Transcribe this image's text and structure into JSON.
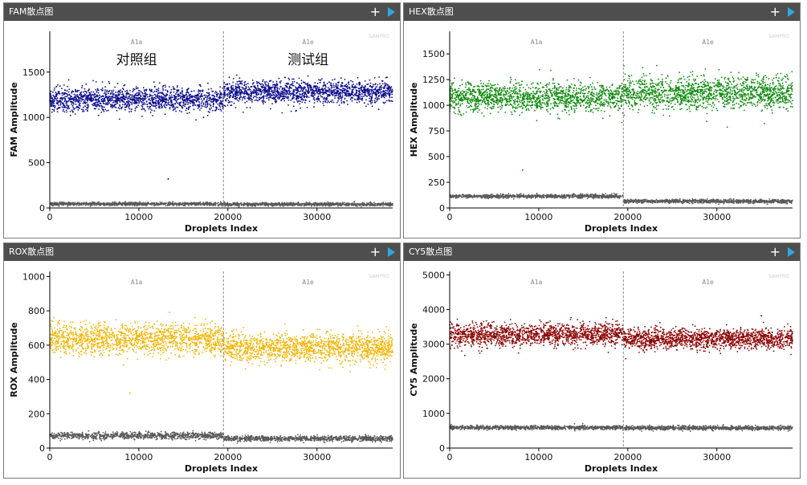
{
  "panels": [
    {
      "title": "FAM散点图",
      "chart_data": {
        "type": "scatter",
        "title": "FAM散点图",
        "xlabel": "Droplets Index",
        "ylabel": "FAM Amplitude",
        "xlim": [
          0,
          38500
        ],
        "ylim": [
          0,
          1950
        ],
        "xticks": [
          0,
          10000,
          20000,
          30000
        ],
        "yticks": [
          0,
          500,
          1000,
          1500
        ],
        "divider_x": 19500,
        "wells": [
          "A1a",
          "A1e"
        ],
        "group_labels": [
          "对照组",
          "测试组"
        ],
        "watermark": "SAMPRO",
        "color": "#0a0a8c",
        "neg_color": "#5a5a5a",
        "segments": [
          {
            "well": "A1a",
            "x_range": [
              0,
              19500
            ],
            "positive_mean": 1200,
            "positive_spread": 65,
            "negative_mean": 45,
            "negative_spread": 9
          },
          {
            "well": "A1e",
            "x_range": [
              19500,
              38500
            ],
            "positive_mean": 1280,
            "positive_spread": 65,
            "negative_mean": 40,
            "negative_spread": 9
          }
        ],
        "outliers": [
          [
            13300,
            320
          ]
        ]
      }
    },
    {
      "title": "HEX散点图",
      "chart_data": {
        "type": "scatter",
        "title": "HEX散点图",
        "xlabel": "Droplets Index",
        "ylabel": "HEX Amplitude",
        "xlim": [
          0,
          38500
        ],
        "ylim": [
          0,
          1720
        ],
        "xticks": [
          0,
          10000,
          20000,
          30000
        ],
        "yticks": [
          0,
          250,
          500,
          750,
          1000,
          1250,
          1500
        ],
        "divider_x": 19500,
        "wells": [
          "A1a",
          "A1e"
        ],
        "group_labels": [],
        "watermark": "SAMPRO",
        "color": "#0c8a0c",
        "neg_color": "#5a5a5a",
        "segments": [
          {
            "well": "A1a",
            "x_range": [
              0,
              19500
            ],
            "positive_mean": 1080,
            "positive_spread": 70,
            "negative_mean": 115,
            "negative_spread": 9
          },
          {
            "well": "A1e",
            "x_range": [
              19500,
              38500
            ],
            "positive_mean": 1120,
            "positive_spread": 75,
            "negative_mean": 65,
            "negative_spread": 9
          }
        ],
        "outliers": [
          [
            8200,
            370
          ]
        ]
      }
    },
    {
      "title": "ROX散点图",
      "chart_data": {
        "type": "scatter",
        "title": "ROX散点图",
        "xlabel": "Droplets Index",
        "ylabel": "ROX Amplitude",
        "xlim": [
          0,
          38500
        ],
        "ylim": [
          0,
          1030
        ],
        "xticks": [
          0,
          10000,
          20000,
          30000
        ],
        "yticks": [
          0,
          200,
          400,
          600,
          800,
          1000
        ],
        "divider_x": 19500,
        "wells": [
          "A1a",
          "A1e"
        ],
        "group_labels": [],
        "watermark": "SAMPRO",
        "color": "#f5b400",
        "neg_color": "#5a5a5a",
        "segments": [
          {
            "well": "A1a",
            "x_range": [
              0,
              19500
            ],
            "positive_mean": 635,
            "positive_spread": 45,
            "negative_mean": 72,
            "negative_spread": 10
          },
          {
            "well": "A1e",
            "x_range": [
              19500,
              38500
            ],
            "positive_mean": 585,
            "positive_spread": 40,
            "negative_mean": 55,
            "negative_spread": 8
          }
        ],
        "outliers": [
          [
            9000,
            320
          ]
        ]
      }
    },
    {
      "title": "CY5散点图",
      "chart_data": {
        "type": "scatter",
        "title": "CY5散点图",
        "xlabel": "Droplets Index",
        "ylabel": "CY5 Amplitude",
        "xlim": [
          0,
          38500
        ],
        "ylim": [
          0,
          5100
        ],
        "xticks": [
          0,
          10000,
          20000,
          30000
        ],
        "yticks": [
          0,
          1000,
          2000,
          3000,
          4000,
          5000
        ],
        "divider_x": 19500,
        "wells": [
          "A1a",
          "A1e"
        ],
        "group_labels": [],
        "watermark": "SAMPRO",
        "color": "#8b0000",
        "neg_color": "#5a5a5a",
        "segments": [
          {
            "well": "A1a",
            "x_range": [
              0,
              19500
            ],
            "positive_mean": 3280,
            "positive_spread": 170,
            "negative_mean": 590,
            "negative_spread": 30
          },
          {
            "well": "A1e",
            "x_range": [
              19500,
              38500
            ],
            "positive_mean": 3150,
            "positive_spread": 150,
            "negative_mean": 580,
            "negative_spread": 30
          }
        ],
        "outliers": [
          [
            35000,
            3820
          ]
        ]
      }
    }
  ]
}
